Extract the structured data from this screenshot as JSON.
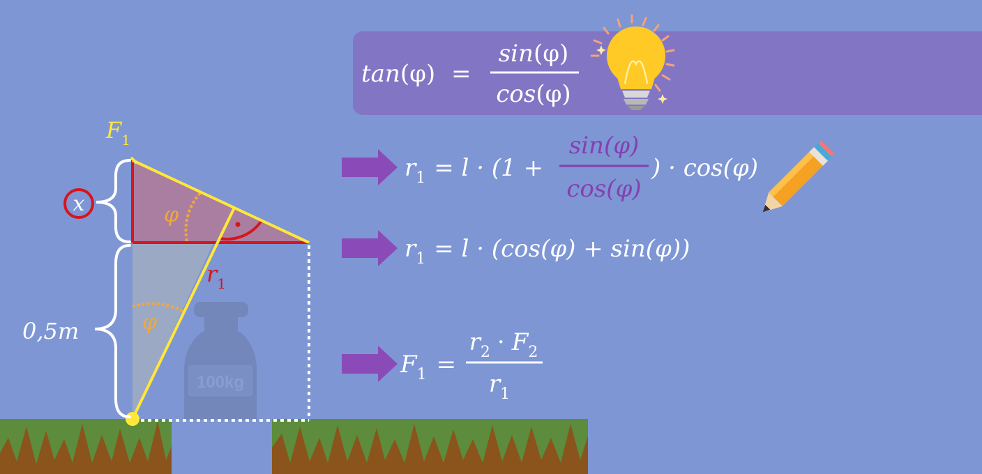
{
  "banner": {
    "lhs_fn": "tan",
    "arg": "(φ)",
    "equals": "=",
    "num_fn": "sin",
    "den_fn": "cos"
  },
  "diagram": {
    "force_label": "F",
    "force_sub": "1",
    "x_label": "x",
    "height_label": "0,5m",
    "radius_label": "r",
    "radius_sub": "1",
    "angle_top": "φ",
    "angle_bottom": "φ",
    "weight_label": "100kg"
  },
  "equations": {
    "eq1": {
      "lhs": "r",
      "lhs_sub": "1",
      "pre": "= l · (1 +",
      "frac_num": "sin(φ)",
      "frac_den": "cos(φ)",
      "post": ") · cos(φ)"
    },
    "eq2": {
      "lhs": "r",
      "lhs_sub": "1",
      "rhs": "= l · (cos(φ) + sin(φ))"
    },
    "eq3": {
      "lhs": "F",
      "lhs_sub": "1",
      "eq": "=",
      "num_a": "r",
      "num_a_sub": "2",
      "num_dot": "·",
      "num_b": "F",
      "num_b_sub": "2",
      "den": "r",
      "den_sub": "1"
    }
  },
  "colors": {
    "background": "#7e96d4",
    "banner": "#8276c4",
    "arrow": "#8a4bb8",
    "triangle_line": "#ffe83a",
    "right_angle_line": "#d8141c",
    "angle_arc": "#f2a83a",
    "purple_text": "#8440b0",
    "grass": "#5c8c3c",
    "dirt": "#8a541c",
    "weight": "#7286b8"
  },
  "icons": [
    "light-bulb-icon",
    "pencil-icon",
    "arrow-right-icon",
    "brace-icon",
    "pivot-point-icon"
  ]
}
